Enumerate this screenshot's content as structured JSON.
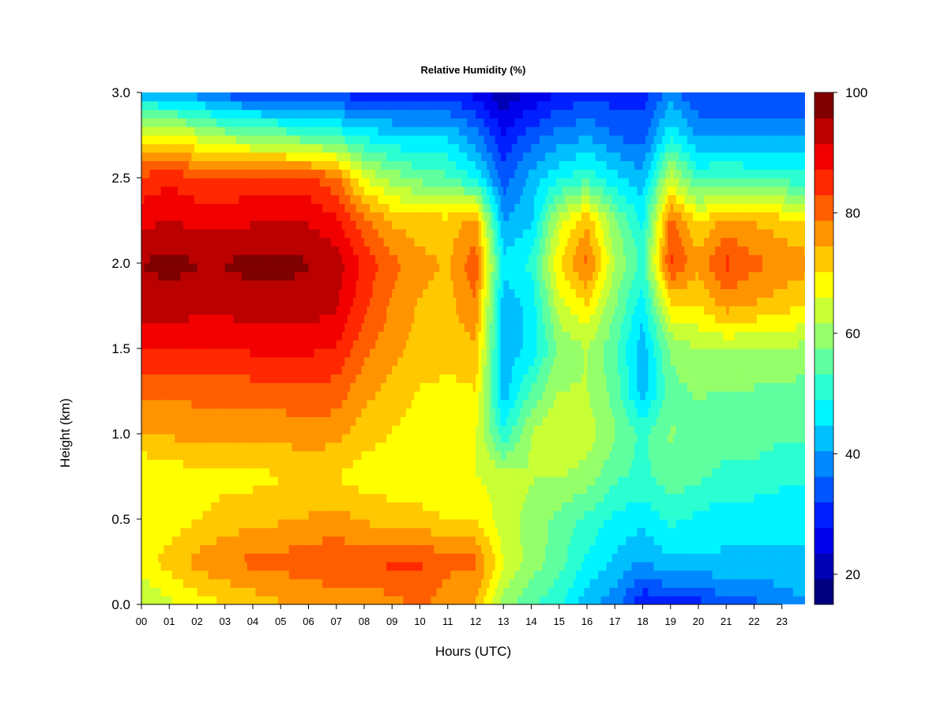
{
  "chart_data": {
    "type": "heatmap",
    "title": "Relative Humidity (%)",
    "xlabel": "Hours (UTC)",
    "ylabel": "Height (km)",
    "xlim": [
      0,
      23.9
    ],
    "ylim": [
      0,
      3.0
    ],
    "x_ticks": [
      "00",
      "01",
      "02",
      "03",
      "04",
      "05",
      "06",
      "07",
      "08",
      "09",
      "10",
      "11",
      "12",
      "13",
      "14",
      "15",
      "16",
      "17",
      "18",
      "19",
      "20",
      "21",
      "22",
      "23"
    ],
    "y_ticks": [
      "0.0",
      "0.5",
      "1.0",
      "1.5",
      "2.0",
      "2.5",
      "3.0"
    ],
    "colorbar": {
      "range": [
        15,
        100
      ],
      "tick_labels": [
        "20",
        "40",
        "60",
        "80",
        "100"
      ],
      "colors": [
        "#00007F",
        "#0000B5",
        "#0000EC",
        "#0020FF",
        "#0055FF",
        "#0089FF",
        "#00BFFF",
        "#00F4FF",
        "#2BFFD2",
        "#5FFF9F",
        "#95FF6A",
        "#C9FF35",
        "#FFFF00",
        "#FFC800",
        "#FF9400",
        "#FF5E00",
        "#FF2800",
        "#F20000",
        "#BB0000",
        "#7F0000"
      ]
    },
    "height_km": [
      0.0,
      0.25,
      0.5,
      0.75,
      1.0,
      1.25,
      1.5,
      1.75,
      2.0,
      2.25,
      2.5,
      2.75,
      3.0
    ],
    "hours": [
      0,
      1,
      2,
      3,
      4,
      5,
      6,
      7,
      8,
      9,
      10,
      11,
      12,
      13,
      14,
      15,
      16,
      17,
      18,
      19,
      20,
      21,
      22,
      23,
      23.9
    ],
    "rh_percent": [
      [
        62,
        65,
        68,
        70,
        72,
        74,
        75,
        76,
        76,
        77,
        80,
        76,
        74,
        60,
        54,
        50,
        42,
        38,
        28,
        30,
        30,
        35,
        35,
        38,
        40
      ],
      [
        68,
        72,
        76,
        78,
        80,
        80,
        82,
        82,
        82,
        84,
        84,
        80,
        80,
        66,
        60,
        55,
        48,
        44,
        40,
        44,
        44,
        44,
        44,
        44,
        44
      ],
      [
        66,
        68,
        70,
        72,
        73,
        74,
        75,
        76,
        74,
        72,
        72,
        70,
        70,
        64,
        60,
        56,
        52,
        48,
        46,
        50,
        48,
        46,
        46,
        46,
        46
      ],
      [
        66,
        68,
        68,
        69,
        69,
        70,
        70,
        70,
        68,
        68,
        67,
        66,
        66,
        64,
        62,
        62,
        60,
        54,
        52,
        56,
        54,
        52,
        52,
        50,
        50
      ],
      [
        74,
        75,
        76,
        76,
        76,
        76,
        77,
        76,
        72,
        70,
        68,
        67,
        66,
        50,
        62,
        66,
        64,
        58,
        52,
        58,
        56,
        55,
        55,
        54,
        54
      ],
      [
        80,
        80,
        80,
        80,
        81,
        81,
        82,
        81,
        76,
        73,
        70,
        69,
        70,
        42,
        54,
        62,
        62,
        56,
        42,
        56,
        58,
        57,
        57,
        56,
        56
      ],
      [
        88,
        88,
        87,
        87,
        88,
        88,
        88,
        87,
        80,
        76,
        73,
        72,
        74,
        42,
        46,
        58,
        62,
        54,
        42,
        58,
        62,
        62,
        62,
        62,
        60
      ],
      [
        93,
        94,
        93,
        93,
        94,
        94,
        94,
        92,
        84,
        78,
        74,
        73,
        78,
        42,
        46,
        64,
        70,
        58,
        46,
        70,
        70,
        76,
        74,
        72,
        70
      ],
      [
        96,
        97,
        96,
        96,
        97,
        97,
        96,
        94,
        86,
        80,
        76,
        74,
        82,
        46,
        50,
        70,
        80,
        62,
        52,
        84,
        76,
        84,
        80,
        78,
        76
      ],
      [
        90,
        92,
        90,
        90,
        91,
        92,
        91,
        88,
        80,
        74,
        72,
        72,
        76,
        40,
        44,
        64,
        74,
        58,
        48,
        80,
        70,
        76,
        74,
        72,
        70
      ],
      [
        84,
        86,
        84,
        84,
        84,
        85,
        84,
        80,
        66,
        60,
        56,
        54,
        48,
        34,
        42,
        48,
        52,
        46,
        42,
        64,
        52,
        54,
        52,
        52,
        50
      ],
      [
        68,
        68,
        64,
        60,
        58,
        56,
        54,
        52,
        48,
        45,
        44,
        44,
        38,
        28,
        34,
        38,
        40,
        36,
        34,
        48,
        40,
        40,
        40,
        40,
        40
      ],
      [
        42,
        40,
        38,
        34,
        32,
        32,
        32,
        30,
        30,
        30,
        30,
        30,
        26,
        20,
        24,
        28,
        30,
        30,
        30,
        38,
        32,
        32,
        32,
        32,
        32
      ]
    ]
  }
}
